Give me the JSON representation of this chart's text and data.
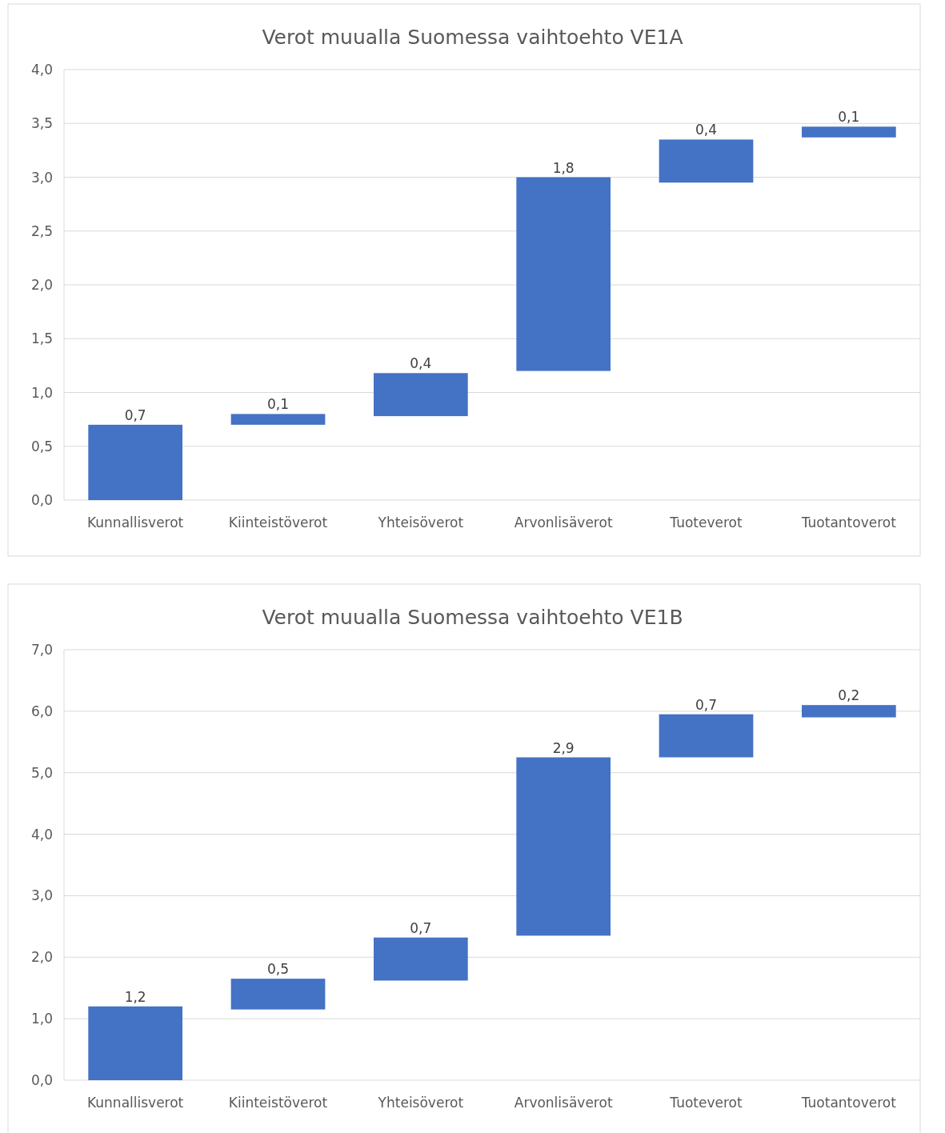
{
  "chart_data": [
    {
      "type": "bar",
      "title": "Verot muualla Suomessa vaihtoehto VE1A",
      "categories": [
        "Kunnallisverot",
        "Kiinteistöverot",
        "Yhteisöverot",
        "Arvonlisäverot",
        "Tuoteverot",
        "Tuotantoverot"
      ],
      "values": [
        0.7,
        0.1,
        0.4,
        1.8,
        0.4,
        0.1
      ],
      "base": [
        0,
        0.7,
        0.78,
        1.2,
        2.95,
        3.37
      ],
      "value_labels": [
        "0,7",
        "0,1",
        "0,4",
        "1,8",
        "0,4",
        "0,1"
      ],
      "color": "#4472c4",
      "ylim": [
        0,
        4
      ],
      "yticks": [
        {
          "value": 0,
          "label": "0,0"
        },
        {
          "value": 0.5,
          "label": "0,5"
        },
        {
          "value": 1,
          "label": "1,0"
        },
        {
          "value": 1.5,
          "label": "1,5"
        },
        {
          "value": 2,
          "label": "2,0"
        },
        {
          "value": 2.5,
          "label": "2,5"
        },
        {
          "value": 3,
          "label": "3,0"
        },
        {
          "value": 3.5,
          "label": "3,5"
        },
        {
          "value": 4,
          "label": "4,0"
        }
      ],
      "grid": "y"
    },
    {
      "type": "bar",
      "title": "Verot muualla Suomessa vaihtoehto VE1B",
      "categories": [
        "Kunnallisverot",
        "Kiinteistöverot",
        "Yhteisöverot",
        "Arvonlisäverot",
        "Tuoteverot",
        "Tuotantoverot"
      ],
      "values": [
        1.2,
        0.5,
        0.7,
        2.9,
        0.7,
        0.2
      ],
      "base": [
        0,
        1.15,
        1.62,
        2.35,
        5.25,
        5.9
      ],
      "value_labels": [
        "1,2",
        "0,5",
        "0,7",
        "2,9",
        "0,7",
        "0,2"
      ],
      "color": "#4472c4",
      "ylim": [
        0,
        7
      ],
      "yticks": [
        {
          "value": 0,
          "label": "0,0"
        },
        {
          "value": 1,
          "label": "1,0"
        },
        {
          "value": 2,
          "label": "2,0"
        },
        {
          "value": 3,
          "label": "3,0"
        },
        {
          "value": 4,
          "label": "4,0"
        },
        {
          "value": 5,
          "label": "5,0"
        },
        {
          "value": 6,
          "label": "6,0"
        },
        {
          "value": 7,
          "label": "7,0"
        }
      ],
      "grid": "y"
    }
  ]
}
